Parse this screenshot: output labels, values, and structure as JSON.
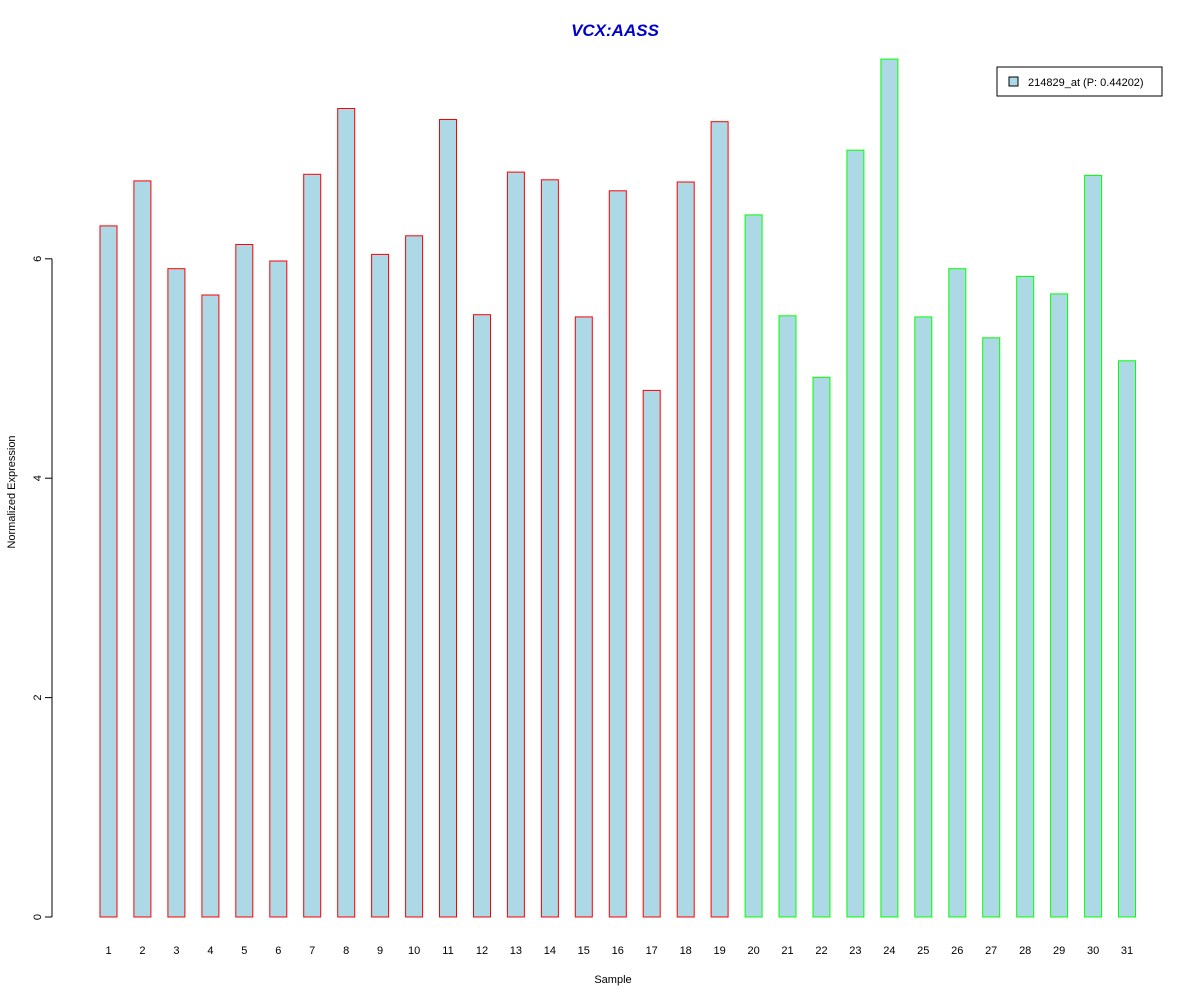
{
  "chart_data": {
    "type": "bar",
    "title": "VCX:AASS",
    "xlabel": "Sample",
    "ylabel": "Normalized Expression",
    "ylim": [
      0,
      7.9
    ],
    "y_ticks": [
      0,
      2,
      4,
      6
    ],
    "grid": false,
    "legend_position": "top-right",
    "categories": [
      "1",
      "2",
      "3",
      "4",
      "5",
      "6",
      "7",
      "8",
      "9",
      "10",
      "11",
      "12",
      "13",
      "14",
      "15",
      "16",
      "17",
      "18",
      "19",
      "20",
      "21",
      "22",
      "23",
      "24",
      "25",
      "26",
      "27",
      "28",
      "29",
      "30",
      "31"
    ],
    "series": [
      {
        "name": "214829_at (P: 0.44202)",
        "fill_color": "#add8e6",
        "values": [
          6.3,
          6.71,
          5.91,
          5.67,
          6.13,
          5.98,
          6.77,
          7.37,
          6.04,
          6.21,
          7.27,
          5.49,
          6.79,
          6.72,
          5.47,
          6.62,
          4.8,
          6.7,
          7.25,
          6.4,
          5.48,
          4.92,
          6.99,
          7.82,
          5.47,
          5.91,
          5.28,
          5.84,
          5.68,
          6.76,
          5.07
        ]
      }
    ],
    "bar_border_colors": [
      "#ff0000",
      "#ff0000",
      "#ff0000",
      "#ff0000",
      "#ff0000",
      "#ff0000",
      "#ff0000",
      "#ff0000",
      "#ff0000",
      "#ff0000",
      "#ff0000",
      "#ff0000",
      "#ff0000",
      "#ff0000",
      "#ff0000",
      "#ff0000",
      "#ff0000",
      "#ff0000",
      "#ff0000",
      "#00ff00",
      "#00ff00",
      "#00ff00",
      "#00ff00",
      "#00ff00",
      "#00ff00",
      "#00ff00",
      "#00ff00",
      "#00ff00",
      "#00ff00",
      "#00ff00",
      "#00ff00"
    ],
    "legend": {
      "label": "214829_at (P: 0.44202)",
      "swatch_fill": "#add8e6"
    }
  }
}
